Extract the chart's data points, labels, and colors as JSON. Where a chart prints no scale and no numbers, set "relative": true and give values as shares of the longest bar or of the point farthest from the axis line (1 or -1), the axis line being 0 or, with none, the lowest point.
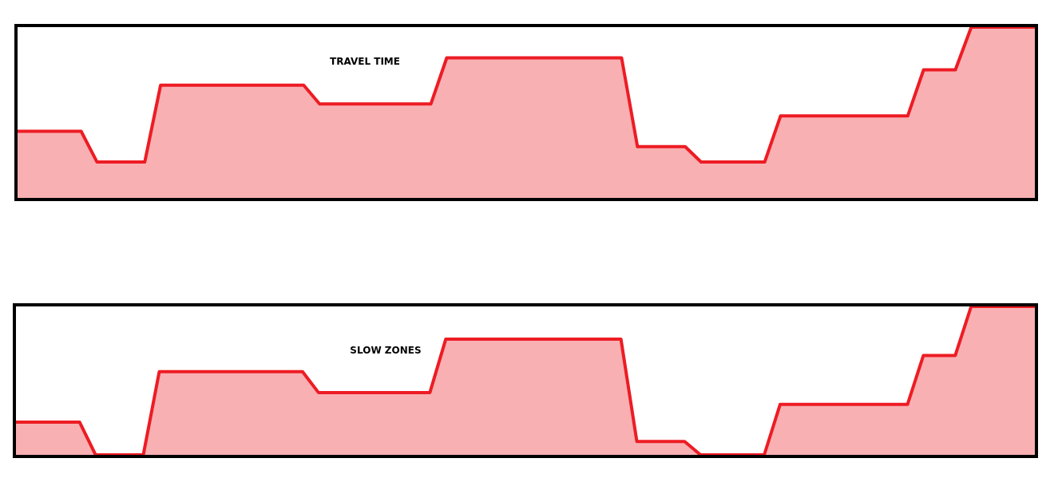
{
  "chart_data": [
    {
      "type": "area",
      "title": "TRAVEL TIME",
      "relative": true,
      "categories": [
        null,
        null,
        null,
        null,
        null,
        null,
        null,
        null,
        null,
        null,
        null,
        null,
        null,
        null,
        null,
        null,
        null,
        null,
        null,
        null,
        null,
        null,
        null,
        null,
        null,
        null,
        null,
        null,
        null,
        null,
        null,
        null,
        null,
        null,
        null,
        null,
        null,
        null,
        null,
        null,
        null,
        null,
        null,
        null,
        null,
        null,
        null,
        null,
        null,
        null,
        null,
        null,
        null,
        null,
        null,
        null,
        null,
        null,
        null,
        null,
        null,
        null,
        null,
        null,
        null
      ],
      "series": [
        {
          "color": "#ed1c24",
          "values": [
            0.39,
            0.39,
            0.39,
            0.39,
            0.39,
            0.21,
            0.21,
            0.21,
            0.21,
            0.66,
            0.66,
            0.66,
            0.66,
            0.66,
            0.66,
            0.66,
            0.66,
            0.66,
            0.66,
            0.55,
            0.55,
            0.55,
            0.55,
            0.55,
            0.55,
            0.55,
            0.55,
            0.82,
            0.82,
            0.82,
            0.82,
            0.82,
            0.82,
            0.82,
            0.82,
            0.82,
            0.82,
            0.82,
            0.82,
            0.3,
            0.3,
            0.3,
            0.3,
            0.21,
            0.21,
            0.21,
            0.21,
            0.21,
            0.48,
            0.48,
            0.48,
            0.48,
            0.48,
            0.48,
            0.48,
            0.48,
            0.48,
            0.75,
            0.75,
            0.75,
            1,
            1,
            1,
            1,
            1
          ]
        }
      ]
    },
    {
      "type": "area",
      "title": "SLOW ZONES",
      "relative": true,
      "categories": [
        null,
        null,
        null,
        null,
        null,
        null,
        null,
        null,
        null,
        null,
        null,
        null,
        null,
        null,
        null,
        null,
        null,
        null,
        null,
        null,
        null,
        null,
        null,
        null,
        null,
        null,
        null,
        null,
        null,
        null,
        null,
        null,
        null,
        null,
        null,
        null,
        null,
        null,
        null,
        null,
        null,
        null,
        null,
        null,
        null,
        null,
        null,
        null,
        null,
        null,
        null,
        null,
        null,
        null,
        null,
        null,
        null,
        null,
        null,
        null,
        null,
        null,
        null,
        null,
        null
      ],
      "series": [
        {
          "color": "#ed1c24",
          "values": [
            0.22,
            0.22,
            0.22,
            0.22,
            0.22,
            0,
            0,
            0,
            0,
            0.56,
            0.56,
            0.56,
            0.56,
            0.56,
            0.56,
            0.56,
            0.56,
            0.56,
            0.56,
            0.42,
            0.42,
            0.42,
            0.42,
            0.42,
            0.42,
            0.42,
            0.42,
            0.78,
            0.78,
            0.78,
            0.78,
            0.78,
            0.78,
            0.78,
            0.78,
            0.78,
            0.78,
            0.78,
            0.78,
            0.09,
            0.09,
            0.09,
            0.09,
            0,
            0,
            0,
            0,
            0,
            0.34,
            0.34,
            0.34,
            0.34,
            0.34,
            0.34,
            0.34,
            0.34,
            0.34,
            0.67,
            0.67,
            0.67,
            1,
            1,
            1,
            1,
            1
          ]
        }
      ]
    }
  ]
}
